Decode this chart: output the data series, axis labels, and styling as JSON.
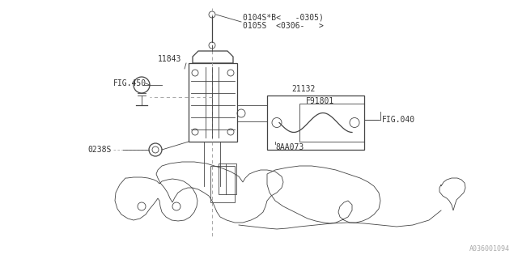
{
  "bg_color": "#ffffff",
  "line_color": "#444444",
  "text_color": "#333333",
  "fig_width": 6.4,
  "fig_height": 3.2,
  "dpi": 100,
  "watermark": "A036001094",
  "labels": {
    "part1": "0104S*B<   -0305)",
    "part1b": "0105S  <0306-   >",
    "part2": "11843",
    "part3": "FIG.450",
    "part4": "21132",
    "part5": "F91801",
    "part6": "FIG.040",
    "part7": "8AA073",
    "part8": "0238S"
  }
}
